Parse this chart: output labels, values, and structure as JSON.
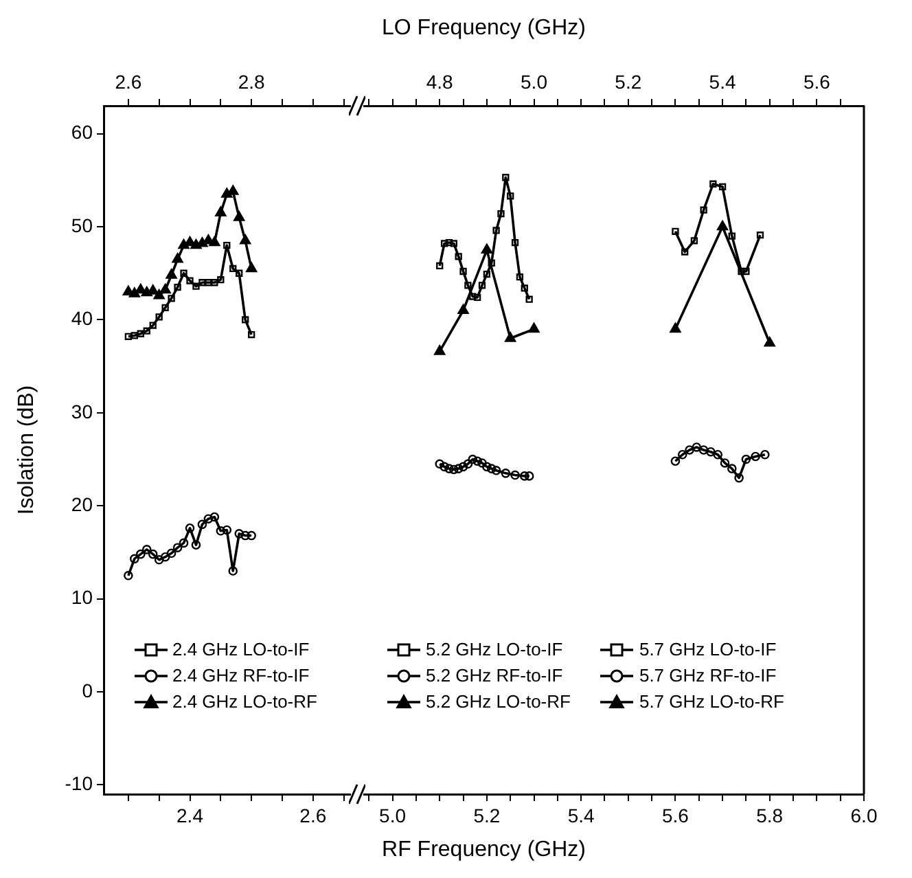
{
  "chart_data": [
    {
      "type": "line",
      "ylabel": "Isolation (dB)",
      "xlim": [
        2.26,
        2.66
      ],
      "xticks": [
        {
          "value": 2.3,
          "label": null
        },
        {
          "value": 2.35,
          "label": null
        },
        2.4,
        {
          "value": 2.45,
          "label": null
        },
        {
          "value": 2.5,
          "label": null
        },
        {
          "value": 2.55,
          "label": null
        },
        2.6,
        {
          "value": 2.65,
          "label": null
        }
      ],
      "x2lim": [
        2.56,
        2.96
      ],
      "x2ticks": [
        2.6,
        {
          "value": 2.65,
          "label": null
        },
        {
          "value": 2.7,
          "label": null
        },
        {
          "value": 2.75,
          "label": null
        },
        2.8,
        {
          "value": 2.85,
          "label": null
        },
        {
          "value": 2.9,
          "label": null
        },
        {
          "value": 2.95,
          "label": null
        }
      ],
      "ylim": [
        -11,
        63
      ],
      "yticks": [
        -10,
        0,
        10,
        20,
        30,
        40,
        50,
        60
      ],
      "grid": false,
      "legend": "bottom",
      "line_style": "solid",
      "series": [
        {
          "name": "2.4 GHz LO-to-IF",
          "color": "#000000",
          "marker": "square",
          "x": [
            2.3,
            2.31,
            2.32,
            2.33,
            2.34,
            2.35,
            2.36,
            2.37,
            2.38,
            2.39,
            2.4,
            2.41,
            2.42,
            2.43,
            2.44,
            2.45,
            2.46,
            2.47,
            2.48,
            2.49,
            2.5
          ],
          "values": [
            38.2,
            38.3,
            38.5,
            38.8,
            39.4,
            40.3,
            41.3,
            42.3,
            43.5,
            45,
            44.2,
            43.6,
            44,
            44,
            44,
            44.3,
            48,
            45.5,
            45,
            40,
            38.4
          ]
        },
        {
          "name": "2.4 GHz RF-to-IF",
          "color": "#000000",
          "marker": "circle",
          "x": [
            2.3,
            2.31,
            2.32,
            2.33,
            2.34,
            2.35,
            2.36,
            2.37,
            2.38,
            2.39,
            2.4,
            2.41,
            2.42,
            2.43,
            2.44,
            2.45,
            2.46,
            2.47,
            2.48,
            2.49,
            2.5
          ],
          "values": [
            12.5,
            14.3,
            14.8,
            15.3,
            14.8,
            14.2,
            14.5,
            14.9,
            15.5,
            16,
            17.6,
            15.8,
            18,
            18.6,
            18.8,
            17.3,
            17.4,
            13,
            17,
            16.8,
            16.8
          ]
        },
        {
          "name": "2.4 GHz LO-to-RF",
          "color": "#000000",
          "marker": "triangle",
          "x": [
            2.3,
            2.31,
            2.32,
            2.33,
            2.34,
            2.35,
            2.36,
            2.37,
            2.38,
            2.39,
            2.4,
            2.41,
            2.42,
            2.43,
            2.44,
            2.45,
            2.46,
            2.47,
            2.48,
            2.49,
            2.5
          ],
          "values": [
            43,
            42.8,
            43.2,
            42.9,
            43.1,
            42.6,
            43.2,
            44.8,
            46.5,
            48,
            48.3,
            48,
            48.2,
            48.5,
            48.3,
            51.5,
            53.5,
            53.8,
            51,
            48.5,
            45.5
          ]
        }
      ]
    },
    {
      "type": "line",
      "xlabel": "RF Frequency (GHz)",
      "x2label": "LO Frequency (GHz)",
      "xlim": [
        4.94,
        6.0
      ],
      "xticks": [
        {
          "value": 4.95,
          "label": null
        },
        {
          "value": 5,
          "label": "5.0"
        },
        {
          "value": 5.05,
          "label": null
        },
        {
          "value": 5.1,
          "label": null
        },
        {
          "value": 5.15,
          "label": null
        },
        5.2,
        {
          "value": 5.25,
          "label": null
        },
        {
          "value": 5.3,
          "label": null
        },
        {
          "value": 5.35,
          "label": null
        },
        5.4,
        {
          "value": 5.45,
          "label": null
        },
        {
          "value": 5.5,
          "label": null
        },
        {
          "value": 5.55,
          "label": null
        },
        5.6,
        {
          "value": 5.65,
          "label": null
        },
        {
          "value": 5.7,
          "label": null
        },
        {
          "value": 5.75,
          "label": null
        },
        5.8,
        {
          "value": 5.85,
          "label": null
        },
        {
          "value": 5.9,
          "label": null
        },
        {
          "value": 5.95,
          "label": null
        },
        {
          "value": 6,
          "label": "6.0"
        }
      ],
      "x2lim": [
        4.64,
        5.7
      ],
      "x2ticks": [
        {
          "value": 4.65,
          "label": null
        },
        {
          "value": 4.7,
          "label": null
        },
        {
          "value": 4.75,
          "label": null
        },
        4.8,
        {
          "value": 4.85,
          "label": null
        },
        {
          "value": 4.9,
          "label": null
        },
        {
          "value": 4.95,
          "label": null
        },
        {
          "value": 5,
          "label": "5.0"
        },
        {
          "value": 5.05,
          "label": null
        },
        {
          "value": 5.1,
          "label": null
        },
        {
          "value": 5.15,
          "label": null
        },
        5.2,
        {
          "value": 5.25,
          "label": null
        },
        {
          "value": 5.3,
          "label": null
        },
        {
          "value": 5.35,
          "label": null
        },
        5.4,
        {
          "value": 5.45,
          "label": null
        },
        {
          "value": 5.5,
          "label": null
        },
        {
          "value": 5.55,
          "label": null
        },
        5.6,
        {
          "value": 5.65,
          "label": null
        }
      ],
      "ylim": [
        -11,
        63
      ],
      "yticks": [
        -10,
        0,
        10,
        20,
        30,
        40,
        50,
        60
      ],
      "tick_labels": "x",
      "grid": false,
      "legend": "bottom",
      "line_style": "solid",
      "series": [
        {
          "name": "5.2 GHz LO-to-IF",
          "color": "#000000",
          "marker": "square",
          "x": [
            5.1,
            5.11,
            5.12,
            5.13,
            5.14,
            5.15,
            5.16,
            5.17,
            5.18,
            5.19,
            5.2,
            5.21,
            5.22,
            5.23,
            5.24,
            5.25,
            5.26,
            5.27,
            5.28,
            5.29
          ],
          "values": [
            45.8,
            48.2,
            48.3,
            48.2,
            46.8,
            45.2,
            43.7,
            42.5,
            42.4,
            43.7,
            44.9,
            46.1,
            49.6,
            51.4,
            55.3,
            53.3,
            48.3,
            44.6,
            43.4,
            42.2
          ]
        },
        {
          "name": "5.2 GHz RF-to-IF",
          "color": "#000000",
          "marker": "circle",
          "x": [
            5.1,
            5.11,
            5.12,
            5.13,
            5.14,
            5.15,
            5.16,
            5.17,
            5.18,
            5.19,
            5.2,
            5.21,
            5.22,
            5.24,
            5.26,
            5.28,
            5.29
          ],
          "values": [
            24.5,
            24.2,
            24,
            23.9,
            24,
            24.2,
            24.5,
            25,
            24.8,
            24.6,
            24.2,
            24,
            23.8,
            23.5,
            23.3,
            23.2,
            23.2
          ]
        },
        {
          "name": "5.2 GHz LO-to-RF",
          "color": "#000000",
          "marker": "triangle",
          "x": [
            5.1,
            5.15,
            5.2,
            5.25,
            5.3
          ],
          "values": [
            36.6,
            41,
            47.5,
            38,
            39
          ]
        },
        {
          "name": "5.7 GHz LO-to-IF",
          "color": "#000000",
          "marker": "square",
          "x": [
            5.6,
            5.62,
            5.64,
            5.66,
            5.68,
            5.7,
            5.72,
            5.74,
            5.75,
            5.78
          ],
          "values": [
            49.5,
            47.3,
            48.5,
            51.8,
            54.6,
            54.3,
            49,
            45.2,
            45.2,
            49.1
          ]
        },
        {
          "name": "5.7 GHz RF-to-IF",
          "color": "#000000",
          "marker": "circle",
          "x": [
            5.6,
            5.615,
            5.63,
            5.645,
            5.66,
            5.675,
            5.69,
            5.705,
            5.72,
            5.735,
            5.75,
            5.77,
            5.79
          ],
          "values": [
            24.8,
            25.5,
            26,
            26.3,
            26,
            25.8,
            25.5,
            24.6,
            24,
            23,
            25,
            25.3,
            25.5
          ]
        },
        {
          "name": "5.7 GHz LO-to-RF",
          "color": "#000000",
          "marker": "triangle",
          "x": [
            5.6,
            5.7,
            5.8
          ],
          "values": [
            39,
            50,
            37.5
          ]
        }
      ]
    }
  ]
}
